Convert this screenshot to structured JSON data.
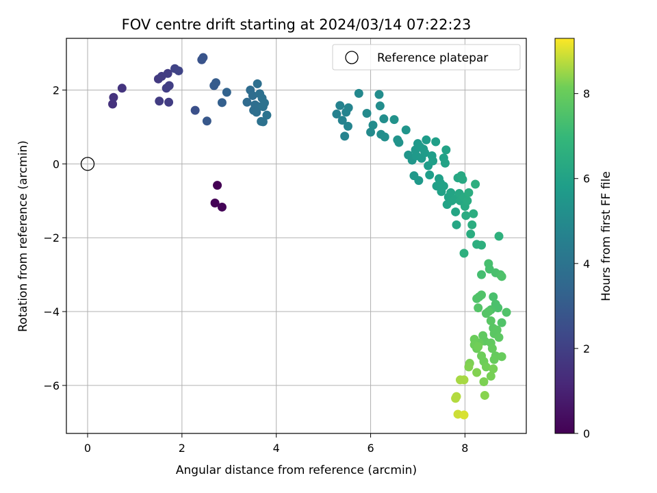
{
  "chart_data": {
    "type": "scatter",
    "title": "FOV centre drift starting at 2024/03/14 07:22:23",
    "xlabel": "Angular distance from reference (arcmin)",
    "ylabel": "Rotation from reference (arcmin)",
    "xlim": [
      -0.45,
      9.3
    ],
    "ylim": [
      -7.3,
      3.4
    ],
    "xticks": [
      0,
      2,
      4,
      6,
      8
    ],
    "yticks": [
      -6,
      -4,
      -2,
      0,
      2
    ],
    "xtick_labels": [
      "0",
      "2",
      "4",
      "6",
      "8"
    ],
    "ytick_labels": [
      "−6",
      "−4",
      "−2",
      "0",
      "2"
    ],
    "grid": true,
    "legend": {
      "placement": "top-right",
      "label": "Reference platepar"
    },
    "reference_point": {
      "x": 0,
      "y": 0
    },
    "colorbar": {
      "label": "Hours from first FF file",
      "range": [
        0,
        9.3
      ],
      "ticks": [
        0,
        2,
        4,
        6,
        8
      ],
      "tick_labels": [
        "0",
        "2",
        "4",
        "6",
        "8"
      ],
      "colormap": "viridis"
    },
    "points": [
      [
        2.75,
        -0.58,
        0.0
      ],
      [
        2.7,
        -1.06,
        0.05
      ],
      [
        2.85,
        -1.17,
        0.1
      ],
      [
        0.53,
        1.62,
        1.5
      ],
      [
        0.55,
        1.8,
        1.55
      ],
      [
        0.73,
        2.05,
        1.6
      ],
      [
        1.5,
        2.3,
        1.8
      ],
      [
        1.57,
        2.37,
        1.85
      ],
      [
        1.7,
        2.45,
        1.9
      ],
      [
        1.52,
        1.7,
        1.85
      ],
      [
        1.72,
        1.67,
        1.9
      ],
      [
        1.67,
        2.05,
        1.95
      ],
      [
        1.73,
        2.12,
        1.95
      ],
      [
        1.85,
        2.58,
        2.1
      ],
      [
        1.93,
        2.52,
        2.15
      ],
      [
        2.28,
        1.45,
        2.6
      ],
      [
        2.42,
        2.82,
        2.7
      ],
      [
        2.45,
        2.88,
        2.75
      ],
      [
        2.53,
        1.16,
        2.9
      ],
      [
        2.68,
        2.12,
        3.0
      ],
      [
        2.72,
        2.2,
        3.05
      ],
      [
        2.85,
        1.66,
        3.2
      ],
      [
        2.95,
        1.94,
        3.3
      ],
      [
        3.38,
        1.67,
        3.6
      ],
      [
        3.45,
        2.0,
        3.65
      ],
      [
        3.5,
        1.85,
        3.7
      ],
      [
        3.52,
        1.45,
        3.75
      ],
      [
        3.55,
        1.6,
        3.75
      ],
      [
        3.6,
        2.17,
        3.8
      ],
      [
        3.62,
        1.55,
        3.8
      ],
      [
        3.65,
        1.9,
        3.85
      ],
      [
        3.68,
        1.15,
        3.9
      ],
      [
        3.7,
        1.78,
        3.9
      ],
      [
        3.72,
        1.55,
        3.95
      ],
      [
        3.75,
        1.65,
        3.95
      ],
      [
        3.8,
        1.32,
        4.0
      ],
      [
        3.58,
        1.4,
        3.8
      ],
      [
        3.72,
        1.14,
        3.95
      ],
      [
        5.28,
        1.35,
        4.6
      ],
      [
        5.35,
        1.58,
        4.65
      ],
      [
        5.4,
        1.18,
        4.65
      ],
      [
        5.45,
        0.75,
        4.7
      ],
      [
        5.48,
        1.4,
        4.7
      ],
      [
        5.52,
        1.02,
        4.75
      ],
      [
        5.53,
        1.52,
        4.75
      ],
      [
        5.75,
        1.91,
        4.9
      ],
      [
        5.92,
        1.37,
        5.0
      ],
      [
        6.0,
        0.86,
        5.0
      ],
      [
        6.05,
        1.05,
        5.05
      ],
      [
        6.18,
        1.88,
        5.1
      ],
      [
        6.2,
        1.57,
        5.1
      ],
      [
        6.22,
        0.8,
        5.15
      ],
      [
        6.28,
        1.22,
        5.15
      ],
      [
        6.3,
        0.73,
        5.2
      ],
      [
        6.5,
        1.2,
        5.3
      ],
      [
        6.57,
        0.65,
        5.35
      ],
      [
        6.6,
        0.58,
        5.35
      ],
      [
        6.75,
        0.92,
        5.45
      ],
      [
        6.8,
        0.24,
        5.5
      ],
      [
        6.88,
        0.1,
        5.5
      ],
      [
        6.92,
        -0.32,
        5.55
      ],
      [
        6.95,
        0.38,
        5.55
      ],
      [
        6.97,
        0.22,
        5.6
      ],
      [
        7.0,
        0.55,
        5.6
      ],
      [
        7.02,
        -0.45,
        5.6
      ],
      [
        7.05,
        0.46,
        5.65
      ],
      [
        7.08,
        0.15,
        5.65
      ],
      [
        7.12,
        0.4,
        5.7
      ],
      [
        7.15,
        0.3,
        5.7
      ],
      [
        7.18,
        0.65,
        5.75
      ],
      [
        7.22,
        -0.05,
        5.75
      ],
      [
        7.25,
        -0.3,
        5.8
      ],
      [
        7.3,
        0.22,
        5.8
      ],
      [
        7.32,
        0.08,
        5.85
      ],
      [
        7.38,
        0.6,
        5.85
      ],
      [
        7.4,
        -0.6,
        5.9
      ],
      [
        7.45,
        -0.4,
        5.9
      ],
      [
        7.48,
        -0.52,
        5.95
      ],
      [
        7.5,
        -0.75,
        5.95
      ],
      [
        7.55,
        -0.6,
        6.0
      ],
      [
        7.55,
        0.16,
        5.95
      ],
      [
        7.58,
        0.02,
        6.0
      ],
      [
        7.6,
        0.38,
        6.0
      ],
      [
        7.62,
        -1.1,
        6.05
      ],
      [
        7.65,
        -0.9,
        6.05
      ],
      [
        7.7,
        -0.78,
        6.1
      ],
      [
        7.72,
        -1.0,
        6.1
      ],
      [
        7.78,
        -0.95,
        6.15
      ],
      [
        7.8,
        -1.3,
        6.15
      ],
      [
        7.82,
        -1.65,
        6.2
      ],
      [
        7.85,
        -0.38,
        6.2
      ],
      [
        7.88,
        -0.8,
        6.25
      ],
      [
        7.9,
        -1.0,
        6.25
      ],
      [
        7.92,
        -0.32,
        6.3
      ],
      [
        7.95,
        -0.42,
        6.3
      ],
      [
        7.98,
        -0.9,
        6.35
      ],
      [
        8.0,
        -1.15,
        6.35
      ],
      [
        8.02,
        -1.4,
        6.4
      ],
      [
        8.05,
        -1.0,
        6.4
      ],
      [
        8.08,
        -0.78,
        6.45
      ],
      [
        8.12,
        -1.9,
        6.45
      ],
      [
        8.15,
        -1.65,
        6.5
      ],
      [
        8.18,
        -1.35,
        6.5
      ],
      [
        8.22,
        -0.55,
        6.55
      ],
      [
        8.25,
        -2.18,
        6.55
      ],
      [
        8.35,
        -2.2,
        6.6
      ],
      [
        7.98,
        -2.42,
        6.6
      ],
      [
        8.72,
        -1.96,
        6.65
      ],
      [
        8.35,
        -3.0,
        7.3
      ],
      [
        8.5,
        -2.7,
        7.35
      ],
      [
        8.52,
        -2.85,
        7.35
      ],
      [
        8.6,
        -3.6,
        7.4
      ],
      [
        8.65,
        -3.8,
        7.45
      ],
      [
        8.7,
        -3.9,
        7.45
      ],
      [
        8.65,
        -2.95,
        7.4
      ],
      [
        8.75,
        -3.0,
        7.45
      ],
      [
        8.78,
        -3.05,
        7.5
      ],
      [
        8.78,
        -4.3,
        7.55
      ],
      [
        8.88,
        -4.02,
        7.55
      ],
      [
        8.55,
        -3.95,
        7.5
      ],
      [
        8.3,
        -3.6,
        7.5
      ],
      [
        8.35,
        -3.55,
        7.55
      ],
      [
        8.25,
        -3.65,
        7.55
      ],
      [
        8.28,
        -3.9,
        7.6
      ],
      [
        8.45,
        -4.05,
        7.65
      ],
      [
        8.5,
        -4.0,
        7.65
      ],
      [
        8.55,
        -4.25,
        7.7
      ],
      [
        8.6,
        -4.45,
        7.7
      ],
      [
        8.62,
        -4.6,
        7.75
      ],
      [
        8.68,
        -4.5,
        7.75
      ],
      [
        8.72,
        -4.7,
        7.8
      ],
      [
        8.38,
        -4.65,
        7.85
      ],
      [
        8.42,
        -4.8,
        7.85
      ],
      [
        8.55,
        -4.85,
        7.9
      ],
      [
        8.58,
        -5.0,
        7.95
      ],
      [
        8.65,
        -5.2,
        7.95
      ],
      [
        8.62,
        -5.3,
        8.0
      ],
      [
        8.78,
        -5.22,
        8.0
      ],
      [
        8.3,
        -4.85,
        8.0
      ],
      [
        8.25,
        -5.0,
        8.05
      ],
      [
        8.2,
        -4.75,
        8.05
      ],
      [
        8.35,
        -5.2,
        8.1
      ],
      [
        8.4,
        -5.35,
        8.1
      ],
      [
        8.45,
        -5.5,
        8.15
      ],
      [
        8.55,
        -5.75,
        8.2
      ],
      [
        8.6,
        -5.55,
        8.2
      ],
      [
        8.4,
        -5.9,
        8.25
      ],
      [
        8.1,
        -5.4,
        8.25
      ],
      [
        8.08,
        -5.5,
        8.3
      ],
      [
        8.25,
        -5.65,
        8.3
      ],
      [
        8.42,
        -6.27,
        8.35
      ],
      [
        7.9,
        -5.85,
        8.6
      ],
      [
        7.98,
        -5.85,
        8.6
      ],
      [
        7.8,
        -6.35,
        8.7
      ],
      [
        7.82,
        -6.3,
        8.7
      ],
      [
        7.85,
        -6.78,
        8.9
      ],
      [
        7.98,
        -6.8,
        9.0
      ],
      [
        8.2,
        -4.9,
        8.1
      ],
      [
        8.28,
        -4.95,
        8.15
      ]
    ]
  }
}
